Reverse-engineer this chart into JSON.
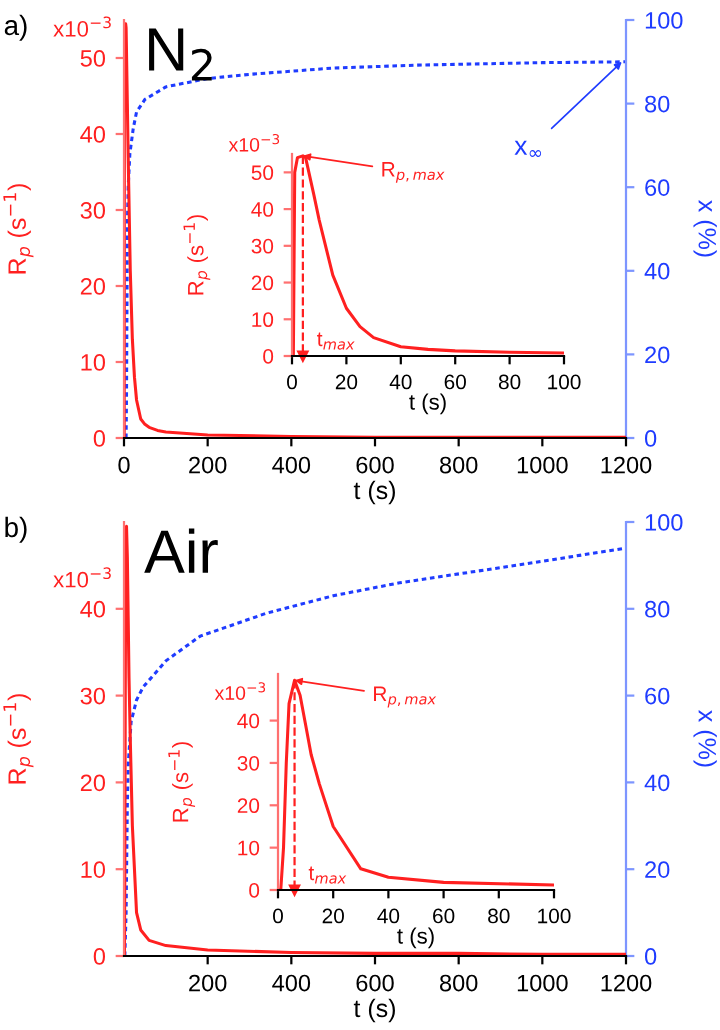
{
  "chart_data": [
    {
      "type": "line",
      "xlabel": "t (s)",
      "ylabel": "R$_{p}$ (s$^{−1}$)",
      "y2label": "x (%)",
      "xlim": [
        0,
        1200
      ],
      "xticks": [
        0,
        200,
        400,
        600,
        800,
        1000,
        1200
      ],
      "ylim": [
        0,
        55
      ],
      "yticks": [
        0,
        10,
        20,
        30,
        40,
        50
      ],
      "y2lim": [
        0,
        100
      ],
      "y2ticks": [
        0,
        20,
        40,
        60,
        80,
        100
      ],
      "series": [
        {
          "color": "#ff2020",
          "line_style": "solid",
          "x": [
            0,
            0.5,
            1,
            2,
            4,
            5,
            8,
            10,
            15,
            20,
            25,
            30,
            40,
            50,
            60,
            80,
            100,
            200,
            400,
            600,
            800,
            1000,
            1200
          ],
          "values": [
            0,
            0,
            50,
            54,
            54.5,
            54,
            44,
            37,
            22,
            13,
            8,
            5,
            2.5,
            1.8,
            1.4,
            1.0,
            0.8,
            0.4,
            0.2,
            0.1,
            0.1,
            0.1,
            0.1
          ]
        },
        {
          "color": "#1f3cff",
          "axis": "y2",
          "line_style": "dotted",
          "x": [
            5,
            6,
            7,
            8,
            10,
            14,
            22,
            30,
            50,
            100,
            200,
            300,
            500,
            700,
            1000,
            1200
          ],
          "values": [
            0,
            10,
            30,
            50,
            60,
            68,
            74,
            78,
            81,
            84,
            86,
            87,
            88.5,
            89.2,
            89.8,
            90
          ]
        }
      ],
      "annotations": [
        "a)",
        "N$_{2}$",
        "x10$^{−3}$",
        {
          "text": "x$_{∞}$",
          "x": 1190,
          "y": 49.5
        }
      ]
    },
    {
      "type": "line",
      "xlabel": "t (s)",
      "ylabel": "R$_{p}$ (s$^{−1}$)",
      "xlim": [
        0,
        100
      ],
      "xticks": [
        0,
        20,
        40,
        60,
        80,
        100
      ],
      "ylim": [
        0,
        55
      ],
      "yticks": [
        0,
        10,
        20,
        30,
        40,
        50
      ],
      "series": [
        {
          "color": "#ff2020",
          "line_style": "solid",
          "x": [
            0,
            0.5,
            1,
            2,
            4,
            5,
            8,
            10,
            15,
            20,
            25,
            30,
            40,
            50,
            60,
            80,
            100
          ],
          "values": [
            0,
            0,
            50,
            54,
            54.5,
            54,
            44,
            37,
            22,
            13,
            8,
            5,
            2.5,
            1.8,
            1.4,
            1.0,
            0.8
          ]
        }
      ],
      "ref_lines": [
        {
          "axis": "x",
          "value": 4,
          "label": "t$_{max}$",
          "line_style": "dashed"
        }
      ],
      "annotations": [
        {
          "text": "R$_{p,max}$",
          "x": 4,
          "y": 54.5
        },
        "x10$^{−3}$"
      ]
    },
    {
      "type": "line",
      "xlabel": "t (s)",
      "ylabel": "R$_{p}$ (s$^{−1}$)",
      "y2label": "x (%)",
      "xlim": [
        0,
        1200
      ],
      "xticks": [
        200,
        400,
        600,
        800,
        1000,
        1200
      ],
      "ylim": [
        0,
        50
      ],
      "yticks": [
        0,
        10,
        20,
        30,
        40
      ],
      "y2lim": [
        0,
        100
      ],
      "y2ticks": [
        0,
        20,
        40,
        60,
        80,
        100
      ],
      "series": [
        {
          "color": "#ff2020",
          "line_style": "solid",
          "x": [
            0,
            1,
            2,
            3,
            4,
            6,
            8,
            10,
            12,
            15,
            20,
            30,
            40,
            60,
            100,
            200,
            400,
            600,
            800,
            1000,
            1200
          ],
          "values": [
            0,
            0,
            10,
            30,
            44,
            49.5,
            46,
            39,
            32,
            25,
            15,
            5,
            3,
            1.8,
            1.2,
            0.7,
            0.4,
            0.3,
            0.3,
            0.2,
            0.2
          ]
        },
        {
          "color": "#1f3cff",
          "axis": "y2",
          "line_style": "dotted",
          "x": [
            2,
            5,
            8,
            10,
            17,
            30,
            46,
            100,
            182,
            341,
            500,
            659,
            977,
            1200
          ],
          "values": [
            0,
            10,
            35,
            44,
            54,
            59,
            62,
            68,
            73.7,
            79,
            83,
            86,
            90.6,
            94
          ]
        }
      ],
      "annotations": [
        "b)",
        "Air",
        "x10$^{−3}$"
      ]
    },
    {
      "type": "line",
      "xlabel": "t (s)",
      "ylabel": "R$_{p}$ (s$^{−1}$)",
      "xlim": [
        0,
        100
      ],
      "xticks": [
        0,
        20,
        40,
        60,
        80,
        100
      ],
      "ylim": [
        0,
        51
      ],
      "yticks": [
        0,
        10,
        20,
        30,
        40
      ],
      "series": [
        {
          "color": "#ff2020",
          "line_style": "solid",
          "x": [
            0,
            1,
            2,
            3,
            4,
            6,
            8,
            10,
            12,
            15,
            20,
            30,
            40,
            60,
            100
          ],
          "values": [
            0,
            0,
            10,
            30,
            44,
            49.5,
            46,
            39,
            32,
            25,
            15,
            5,
            3,
            1.8,
            1.2
          ]
        }
      ],
      "ref_lines": [
        {
          "axis": "x",
          "value": 6,
          "label": "t$_{max}$",
          "line_style": "dashed"
        }
      ],
      "annotations": [
        {
          "text": "R$_{p,max}$",
          "x": 6,
          "y": 49.5
        },
        "x10$^{−3}$"
      ]
    }
  ]
}
